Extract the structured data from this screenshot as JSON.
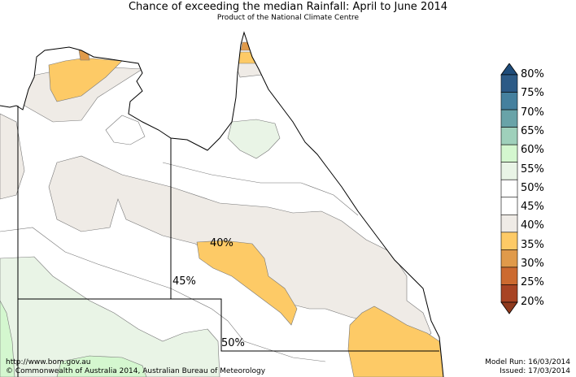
{
  "title": "Chance of exceeding the median Rainfall: April to June 2014",
  "subtitle": "Product of the National Climate Centre",
  "contour_labels": [
    "40%",
    "45%",
    "50%"
  ],
  "legend": {
    "labels": [
      "80%",
      "75%",
      "70%",
      "65%",
      "60%",
      "55%",
      "50%",
      "45%",
      "40%",
      "35%",
      "30%",
      "25%",
      "20%"
    ],
    "colors": [
      "#2c5a86",
      "#45809e",
      "#69a3a8",
      "#9fd0bb",
      "#d4f7cf",
      "#e9f4e6",
      "#ffffff",
      "#ffffff",
      "#efebe6",
      "#fdca66",
      "#e09a4a",
      "#cc6a30",
      "#a84424"
    ]
  },
  "footer": {
    "url": "http://www.bom.gov.au",
    "copyright": "©  Commonwealth of Australia 2014, Australian Bureau of Meteorology",
    "model_run": "Model Run: 16/03/2014",
    "issued": "Issued: 17/03/2014"
  },
  "colors": {
    "beige_40_45": "#efebe6",
    "orange_35_40": "#fdca66",
    "dark_orange_30_35": "#e09a4a",
    "light_green_55_60": "#e9f4e6",
    "green_60_65": "#d4f7cf"
  }
}
